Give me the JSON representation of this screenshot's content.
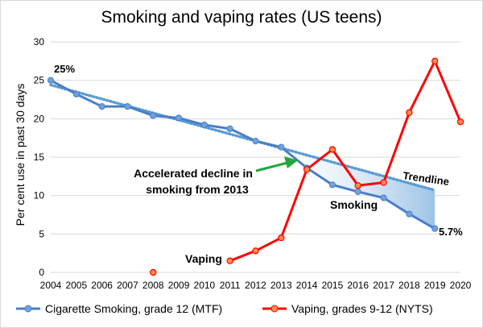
{
  "chart_data": {
    "type": "line",
    "title": "Smoking and vaping rates (US teens)",
    "ylabel": "Per cent use in past 30 days",
    "xlabel": "",
    "ylim": [
      0,
      30
    ],
    "yticks": [
      0,
      5,
      10,
      15,
      20,
      25,
      30
    ],
    "xlim": [
      2004,
      2020
    ],
    "xticks": [
      2004,
      2005,
      2006,
      2007,
      2008,
      2009,
      2010,
      2011,
      2012,
      2013,
      2014,
      2015,
      2016,
      2017,
      2018,
      2019,
      2020
    ],
    "grid": "horizontal",
    "legend_position": "bottom",
    "colors": {
      "smoking": "#4a7fc6",
      "smoking_marker": "#6fa2dc",
      "vaping": "#ff0000",
      "vaping_marker": "#ff8c4a",
      "trendline": "#5b9bd5",
      "shade": "#9dc3e6",
      "arrow": "#1fa83c",
      "grid": "#d9d9d9"
    },
    "series": [
      {
        "name": "Cigarette Smoking, grade 12 (MTF)",
        "x": [
          2004,
          2005,
          2006,
          2007,
          2008,
          2009,
          2010,
          2011,
          2012,
          2013,
          2014,
          2015,
          2016,
          2017,
          2018,
          2019
        ],
        "values": [
          25.0,
          23.2,
          21.6,
          21.6,
          20.4,
          20.1,
          19.2,
          18.7,
          17.1,
          16.3,
          13.6,
          11.4,
          10.5,
          9.7,
          7.6,
          5.7
        ]
      },
      {
        "name": "Vaping, grades 9-12 (NYTS)",
        "segments": [
          {
            "x": [
              2008
            ],
            "values": [
              0.0
            ]
          },
          {
            "x": [
              2011,
              2012,
              2013,
              2014,
              2015,
              2016,
              2017,
              2018,
              2019,
              2020
            ],
            "values": [
              1.5,
              2.8,
              4.5,
              13.4,
              16.0,
              11.3,
              11.7,
              20.8,
              27.5,
              19.6
            ]
          }
        ]
      }
    ],
    "trendline": {
      "x": [
        2004,
        2019
      ],
      "values": [
        24.4,
        10.7
      ]
    },
    "shaded_gap": {
      "from_x": 2013,
      "to_x": 2019
    },
    "annotations": {
      "start_label": "25%",
      "end_label": "5.7%",
      "trendline_label": "Trendline",
      "smoking_label": "Smoking",
      "vaping_label": "Vaping",
      "decline_line1": "Accelerated decline in",
      "decline_line2": "smoking from 2013"
    }
  }
}
